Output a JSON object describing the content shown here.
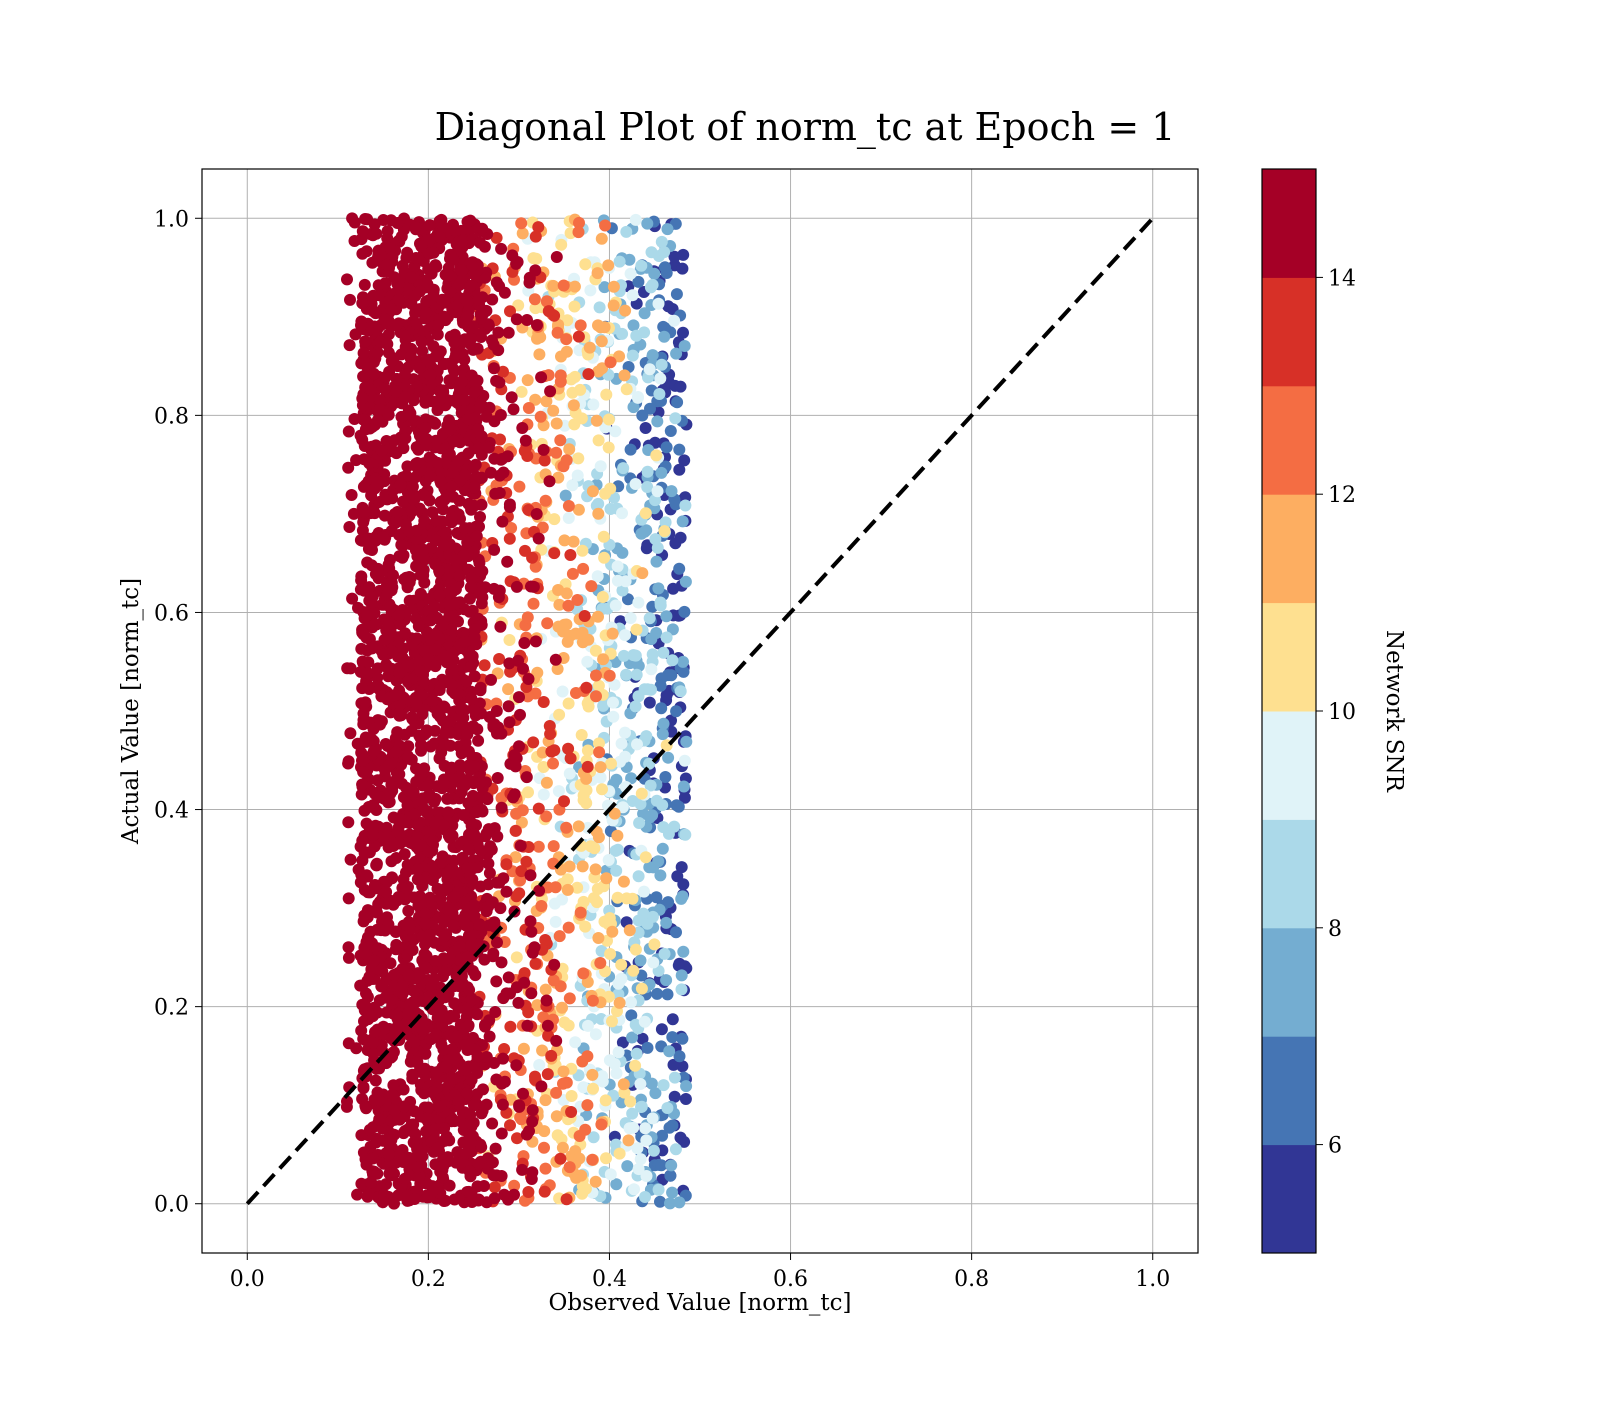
{
  "chart_data": {
    "type": "scatter",
    "title": "Diagonal Plot of norm_tc at Epoch = 1",
    "xlabel": "Observed Value [norm_tc]",
    "ylabel": "Actual Value [norm_tc]",
    "xlim": [
      -0.05,
      1.05
    ],
    "ylim": [
      -0.05,
      1.05
    ],
    "xticks": [
      "0.0",
      "0.2",
      "0.4",
      "0.6",
      "0.8",
      "1.0"
    ],
    "yticks": [
      "0.0",
      "0.2",
      "0.4",
      "0.6",
      "0.8",
      "1.0"
    ],
    "grid": true,
    "diagonal_line": {
      "x": [
        0.0,
        1.0
      ],
      "y": [
        0.0,
        1.0
      ],
      "style": "dashed",
      "color": "#000000"
    },
    "scatter_extent": {
      "x": [
        0.11,
        0.5
      ],
      "y": [
        0.0,
        1.0
      ]
    },
    "color_trend": "Network SNR decreases as observed value increases: >14 for x below 0.26, down to 5-6 near x = 0.49",
    "colorbar": {
      "label": "Network SNR",
      "range": [
        5,
        15
      ],
      "ticks": [
        "6",
        "8",
        "10",
        "12",
        "14"
      ],
      "levels": [
        5,
        6,
        7,
        8,
        9,
        10,
        11,
        12,
        13,
        14,
        15
      ],
      "colors": [
        "#313695",
        "#4575b4",
        "#74add1",
        "#abd9e9",
        "#e0f3f8",
        "#fee090",
        "#fdae61",
        "#f46d43",
        "#d73027",
        "#a50026"
      ]
    }
  }
}
